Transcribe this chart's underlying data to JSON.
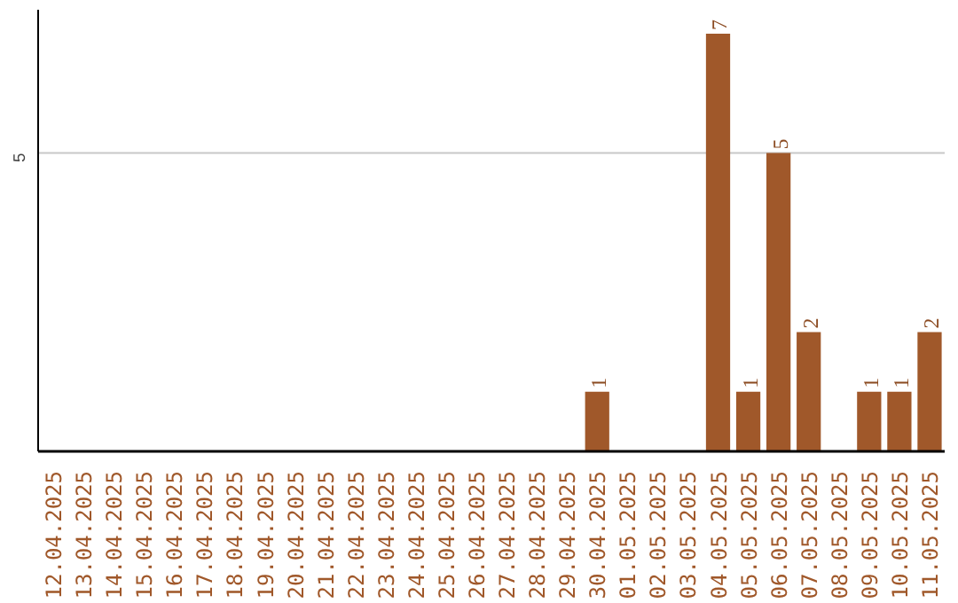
{
  "chart_data": {
    "type": "bar",
    "categories": [
      "12.04.2025",
      "13.04.2025",
      "14.04.2025",
      "15.04.2025",
      "16.04.2025",
      "17.04.2025",
      "18.04.2025",
      "19.04.2025",
      "20.04.2025",
      "21.04.2025",
      "22.04.2025",
      "23.04.2025",
      "24.04.2025",
      "25.04.2025",
      "26.04.2025",
      "27.04.2025",
      "28.04.2025",
      "29.04.2025",
      "30.04.2025",
      "01.05.2025",
      "02.05.2025",
      "03.05.2025",
      "04.05.2025",
      "05.05.2025",
      "06.05.2025",
      "07.05.2025",
      "08.05.2025",
      "09.05.2025",
      "10.05.2025",
      "11.05.2025"
    ],
    "values": [
      null,
      null,
      null,
      null,
      null,
      null,
      null,
      null,
      null,
      null,
      null,
      null,
      null,
      null,
      null,
      null,
      null,
      null,
      1,
      null,
      null,
      null,
      7,
      1,
      5,
      2,
      null,
      1,
      1,
      2
    ],
    "data_labels": true,
    "color": "#a0582a",
    "ylim": [
      0,
      7.4
    ],
    "ref_lines": [
      {
        "axis": "y",
        "value": 5,
        "label": "5",
        "color": "#c8c8c8"
      }
    ]
  }
}
